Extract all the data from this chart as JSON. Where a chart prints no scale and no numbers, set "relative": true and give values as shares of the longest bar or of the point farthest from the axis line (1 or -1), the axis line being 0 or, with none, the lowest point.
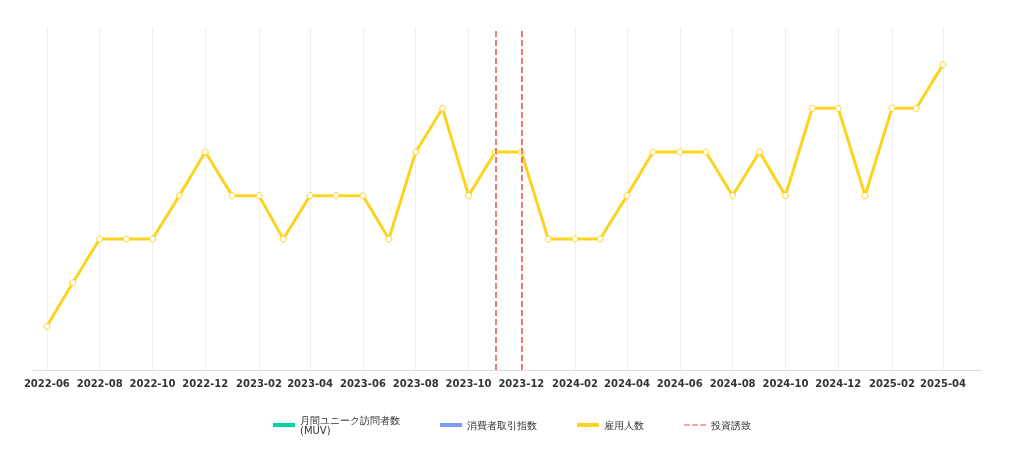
{
  "chart_data": {
    "type": "line",
    "relative": true,
    "x": [
      "2022-06",
      "2022-07",
      "2022-08",
      "2022-09",
      "2022-10",
      "2022-11",
      "2022-12",
      "2023-01",
      "2023-02",
      "2023-03",
      "2023-04",
      "2023-05",
      "2023-06",
      "2023-07",
      "2023-08",
      "2023-09",
      "2023-10",
      "2023-11",
      "2023-12",
      "2024-01",
      "2024-02",
      "2024-03",
      "2024-04",
      "2024-05",
      "2024-06",
      "2024-07",
      "2024-08",
      "2024-09",
      "2024-10",
      "2024-11",
      "2024-12",
      "2025-01",
      "2025-02",
      "2025-03",
      "2025-04"
    ],
    "xlim": [
      "2022-05-16",
      "2025-05-16"
    ],
    "xticks": [
      "2022-06",
      "2022-08",
      "2022-10",
      "2022-12",
      "2023-02",
      "2023-04",
      "2023-06",
      "2023-08",
      "2023-10",
      "2023-12",
      "2024-02",
      "2024-04",
      "2024-06",
      "2024-08",
      "2024-10",
      "2024-12",
      "2025-02",
      "2025-04"
    ],
    "series": [
      {
        "name": "月間ユニーク訪問者数\n(MUV)",
        "color": "#00d4a0",
        "values": [
          null,
          null,
          null,
          null,
          null,
          null,
          null,
          null,
          null,
          null,
          null,
          null,
          null,
          null,
          null,
          null,
          null,
          null,
          null,
          null,
          null,
          null,
          null,
          null,
          null,
          null,
          null,
          null,
          null,
          null,
          null,
          null,
          null,
          null,
          null
        ]
      },
      {
        "name": "消費者取引指数",
        "color": "#7b9cff",
        "values": [
          null,
          null,
          null,
          null,
          null,
          null,
          null,
          null,
          null,
          null,
          null,
          null,
          null,
          null,
          null,
          null,
          null,
          null,
          null,
          null,
          null,
          null,
          null,
          null,
          null,
          null,
          null,
          null,
          null,
          null,
          null,
          null,
          null,
          null,
          null
        ]
      },
      {
        "name": "雇用人数",
        "color": "#fcd320",
        "values": [
          0.143,
          0.286,
          0.429,
          0.429,
          0.429,
          0.571,
          0.714,
          0.571,
          0.571,
          0.429,
          0.571,
          0.571,
          0.571,
          0.429,
          0.714,
          0.857,
          0.571,
          0.714,
          0.714,
          0.429,
          0.429,
          0.429,
          0.571,
          0.714,
          0.714,
          0.714,
          0.571,
          0.714,
          0.571,
          0.857,
          0.857,
          0.571,
          0.857,
          0.857,
          1
        ]
      }
    ],
    "ref_lines": [
      {
        "axis": "x",
        "value": "2023-11",
        "label": "投資誘致",
        "color": "#e8504a",
        "line_style": "dashed"
      },
      {
        "axis": "x",
        "value": "2023-12",
        "color": "#e8504a",
        "line_style": "dashed"
      }
    ],
    "grid": "x",
    "legend": "bottom",
    "marker": "circle",
    "line_style": "solid"
  }
}
